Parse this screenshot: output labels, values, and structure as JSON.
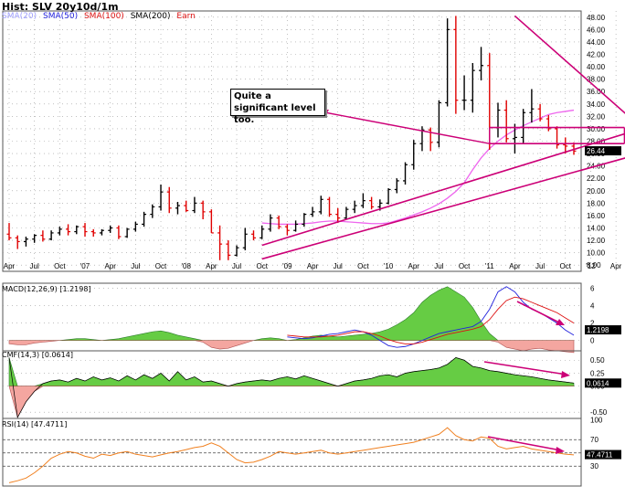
{
  "header": {
    "title": "Hist: SLV 20y10d/1m",
    "legend": [
      {
        "label": "SMA(20)",
        "color": "#9d9dff"
      },
      {
        "label": "SMA(50)",
        "color": "#2222dd"
      },
      {
        "label": "SMA(100)",
        "color": "#dd1111"
      },
      {
        "label": "SMA(200)",
        "color": "#000000"
      },
      {
        "label": "Earn",
        "color": "#dd1111"
      }
    ]
  },
  "annotation": {
    "text": "Quite a significant level too."
  },
  "colors": {
    "up": "#000000",
    "down": "#e00000",
    "trend": "#cc0077",
    "sma": "#ee66ee",
    "macd_pos": "#66cc44",
    "macd_neg": "#f4a6a0",
    "grid": "#9a9a9a"
  },
  "chart_data": [
    {
      "type": "ohlc",
      "title": "SLV price (monthly)",
      "x_tick_labels": [
        "Apr",
        "Jul",
        "Oct",
        "'07",
        "Apr",
        "Jul",
        "Oct",
        "'08",
        "Apr",
        "Jul",
        "Oct",
        "'09",
        "Apr",
        "Jul",
        "Oct",
        "'10",
        "Apr",
        "Jul",
        "Oct",
        "'11",
        "Apr",
        "Jul",
        "Oct",
        "'12",
        "Apr",
        "Jul"
      ],
      "y_ticks": [
        8,
        10,
        12,
        14,
        16,
        18,
        20,
        22,
        24,
        26,
        28,
        30,
        32,
        34,
        36,
        38,
        40,
        42,
        44,
        46,
        48
      ],
      "ylim": [
        7,
        49
      ],
      "last_value": "26.44",
      "bars": [
        [
          13.0,
          14.8,
          12.0,
          12.4
        ],
        [
          12.4,
          12.8,
          10.6,
          11.8
        ],
        [
          11.8,
          12.6,
          11.0,
          12.2
        ],
        [
          12.2,
          13.0,
          11.6,
          12.8
        ],
        [
          12.8,
          13.6,
          11.8,
          12.2
        ],
        [
          12.2,
          13.6,
          12.0,
          13.2
        ],
        [
          13.2,
          14.2,
          12.8,
          13.8
        ],
        [
          13.8,
          14.6,
          12.8,
          13.4
        ],
        [
          13.4,
          14.4,
          13.0,
          14.2
        ],
        [
          14.2,
          14.8,
          12.6,
          13.4
        ],
        [
          13.4,
          13.8,
          12.6,
          13.2
        ],
        [
          13.2,
          13.8,
          12.8,
          13.6
        ],
        [
          13.6,
          14.4,
          13.2,
          14.0
        ],
        [
          14.0,
          14.4,
          12.2,
          12.6
        ],
        [
          12.6,
          14.0,
          12.4,
          13.8
        ],
        [
          13.8,
          15.0,
          13.4,
          14.6
        ],
        [
          14.6,
          16.6,
          14.2,
          16.2
        ],
        [
          16.2,
          17.8,
          15.6,
          17.4
        ],
        [
          17.4,
          21.0,
          16.8,
          19.8
        ],
        [
          19.8,
          20.6,
          16.4,
          17.2
        ],
        [
          17.2,
          18.2,
          16.2,
          17.6
        ],
        [
          17.6,
          18.4,
          16.6,
          16.8
        ],
        [
          16.8,
          19.0,
          16.4,
          18.0
        ],
        [
          18.0,
          18.4,
          15.4,
          16.6
        ],
        [
          16.6,
          17.0,
          13.2,
          13.2
        ],
        [
          13.2,
          14.4,
          8.8,
          11.4
        ],
        [
          11.4,
          12.0,
          8.8,
          9.6
        ],
        [
          9.6,
          11.2,
          9.4,
          10.8
        ],
        [
          10.8,
          14.0,
          10.4,
          13.0
        ],
        [
          13.0,
          13.6,
          12.0,
          12.4
        ],
        [
          12.4,
          14.4,
          12.2,
          13.8
        ],
        [
          13.8,
          16.2,
          13.4,
          15.6
        ],
        [
          15.6,
          16.0,
          13.8,
          14.2
        ],
        [
          14.2,
          14.6,
          12.8,
          13.6
        ],
        [
          13.6,
          15.2,
          13.4,
          14.6
        ],
        [
          14.6,
          16.4,
          14.2,
          16.2
        ],
        [
          16.2,
          17.4,
          15.8,
          16.6
        ],
        [
          16.6,
          19.2,
          16.2,
          18.6
        ],
        [
          18.6,
          19.0,
          15.8,
          16.2
        ],
        [
          16.2,
          17.2,
          14.8,
          15.6
        ],
        [
          15.6,
          17.4,
          15.4,
          17.0
        ],
        [
          17.0,
          18.4,
          16.4,
          17.6
        ],
        [
          17.6,
          19.6,
          17.2,
          18.4
        ],
        [
          18.4,
          19.0,
          17.0,
          17.4
        ],
        [
          17.4,
          18.6,
          16.8,
          18.0
        ],
        [
          18.0,
          20.4,
          17.8,
          20.2
        ],
        [
          20.2,
          22.0,
          19.6,
          21.6
        ],
        [
          21.6,
          24.6,
          21.0,
          24.2
        ],
        [
          24.2,
          28.2,
          23.4,
          27.6
        ],
        [
          27.6,
          30.4,
          26.4,
          29.8
        ],
        [
          29.8,
          30.2,
          26.4,
          27.8
        ],
        [
          27.8,
          34.6,
          27.0,
          34.2
        ],
        [
          34.2,
          47.8,
          33.6,
          46.0
        ],
        [
          46.0,
          48.2,
          32.4,
          34.6
        ],
        [
          34.6,
          38.6,
          33.0,
          34.6
        ],
        [
          34.6,
          40.6,
          32.6,
          39.4
        ],
        [
          39.4,
          43.2,
          37.8,
          40.2
        ],
        [
          40.2,
          42.2,
          26.6,
          30.2
        ],
        [
          30.2,
          34.2,
          28.6,
          33.0
        ],
        [
          33.0,
          34.6,
          27.8,
          28.4
        ],
        [
          28.4,
          30.8,
          26.0,
          28.6
        ],
        [
          28.6,
          33.2,
          27.6,
          32.6
        ],
        [
          32.6,
          36.4,
          31.0,
          33.2
        ],
        [
          33.2,
          34.0,
          31.2,
          31.6
        ],
        [
          31.6,
          32.2,
          29.6,
          30.0
        ],
        [
          30.0,
          30.4,
          26.8,
          27.4
        ],
        [
          27.4,
          28.6,
          26.0,
          27.2
        ],
        [
          27.2,
          27.8,
          25.8,
          26.4
        ]
      ],
      "series": [
        {
          "name": "SMA(20)",
          "values": [
            14.8,
            14.7,
            14.6,
            14.6,
            14.6,
            14.7,
            14.8,
            15.0,
            15.1,
            15.1,
            15.0,
            14.9,
            14.8,
            14.7,
            14.7,
            14.8,
            15.2,
            15.6,
            16.1,
            16.6,
            17.2,
            17.9,
            18.8,
            19.9,
            21.3,
            23.4,
            25.3,
            26.8,
            28.0,
            29.0,
            29.8,
            30.5,
            31.1,
            31.7,
            32.3,
            32.6,
            32.8,
            33.0
          ]
        }
      ],
      "trendlines": [
        {
          "name": "channel-upper",
          "from": [
            "Oct 2008",
            11.2
          ],
          "to": [
            "Jul 2012",
            30.0
          ]
        },
        {
          "name": "channel-lower",
          "from": [
            "Oct 2008",
            9.0
          ],
          "to": [
            "Jul 2012",
            26.0
          ]
        },
        {
          "name": "triangle-top",
          "from": [
            "Apr 2011",
            48.2
          ],
          "to": [
            "Jul 2012",
            30.2
          ]
        },
        {
          "name": "resistance-top",
          "from": [
            "Jan 2011",
            30.2
          ],
          "to": [
            "May 2012",
            30.2
          ]
        },
        {
          "name": "resistance-bottom",
          "from": [
            "Jan 2011",
            27.6
          ],
          "to": [
            "May 2012",
            27.6
          ]
        }
      ]
    },
    {
      "type": "histogram",
      "title": "MACD(12,26,9)",
      "value_label": "1.2198",
      "y_ticks": [
        0,
        2,
        4,
        6
      ],
      "ylim": [
        -1.2,
        6.6
      ],
      "histogram": [
        -0.4,
        -0.5,
        -0.5,
        -0.3,
        -0.2,
        -0.1,
        0.0,
        0.1,
        0.2,
        0.2,
        0.1,
        0.0,
        0.1,
        0.2,
        0.4,
        0.6,
        0.8,
        1.0,
        1.1,
        0.9,
        0.6,
        0.4,
        0.2,
        -0.2,
        -0.8,
        -1.0,
        -0.9,
        -0.6,
        -0.3,
        0.0,
        0.2,
        0.3,
        0.2,
        0.0,
        0.1,
        0.3,
        0.5,
        0.6,
        0.5,
        0.4,
        0.5,
        0.6,
        0.7,
        0.8,
        1.0,
        1.3,
        1.8,
        2.4,
        3.2,
        4.4,
        5.2,
        5.8,
        6.2,
        5.6,
        5.0,
        3.8,
        2.2,
        0.8,
        -0.2,
        -0.8,
        -1.0,
        -1.2,
        -1.0,
        -0.9,
        -1.1,
        -1.2,
        -1.3,
        -1.4
      ],
      "series": [
        {
          "name": "MACD",
          "color": "#2222dd",
          "values": [
            0.4,
            0.3,
            0.2,
            0.3,
            0.5,
            0.7,
            0.8,
            1.0,
            1.2,
            1.0,
            0.6,
            0.0,
            -0.6,
            -0.8,
            -0.7,
            -0.4,
            0.0,
            0.4,
            0.8,
            1.0,
            1.2,
            1.4,
            1.6,
            2.2,
            3.6,
            5.6,
            6.2,
            5.6,
            4.4,
            3.6,
            3.2,
            2.6,
            2.0,
            1.2,
            0.6
          ]
        },
        {
          "name": "Signal",
          "color": "#dd1111",
          "values": [
            0.6,
            0.5,
            0.4,
            0.4,
            0.4,
            0.5,
            0.6,
            0.8,
            1.0,
            1.0,
            0.8,
            0.5,
            0.1,
            -0.2,
            -0.4,
            -0.4,
            -0.2,
            0.1,
            0.4,
            0.7,
            0.9,
            1.1,
            1.3,
            1.6,
            2.4,
            3.6,
            4.6,
            5.0,
            4.8,
            4.4,
            4.0,
            3.6,
            3.2,
            2.6,
            2.0
          ]
        }
      ]
    },
    {
      "type": "area",
      "title": "CMF(14,3)",
      "value_label": "0.0614",
      "y_ticks": [
        -0.5,
        0,
        0.25,
        0.5
      ],
      "ylim": [
        -0.62,
        0.68
      ],
      "values": [
        0.55,
        -0.6,
        -0.3,
        -0.1,
        0.05,
        0.1,
        0.12,
        0.08,
        0.15,
        0.1,
        0.18,
        0.12,
        0.16,
        0.1,
        0.2,
        0.12,
        0.22,
        0.15,
        0.25,
        0.1,
        0.28,
        0.12,
        0.18,
        0.08,
        0.1,
        0.05,
        0.0,
        0.05,
        0.08,
        0.1,
        0.12,
        0.1,
        0.15,
        0.18,
        0.14,
        0.2,
        0.15,
        0.1,
        0.05,
        0.0,
        0.05,
        0.1,
        0.12,
        0.15,
        0.2,
        0.22,
        0.18,
        0.25,
        0.28,
        0.3,
        0.32,
        0.35,
        0.42,
        0.55,
        0.5,
        0.38,
        0.35,
        0.3,
        0.28,
        0.25,
        0.22,
        0.2,
        0.18,
        0.15,
        0.12,
        0.1,
        0.08,
        0.06
      ]
    },
    {
      "type": "line",
      "title": "RSI(14)",
      "value_label": "47.4711",
      "y_ticks": [
        30,
        50,
        70,
        100
      ],
      "ylim": [
        0,
        102
      ],
      "hlines": [
        30,
        50,
        70
      ],
      "values": [
        5,
        8,
        12,
        20,
        30,
        42,
        48,
        52,
        50,
        45,
        42,
        48,
        46,
        50,
        52,
        48,
        46,
        44,
        47,
        50,
        52,
        55,
        58,
        60,
        65,
        60,
        50,
        40,
        35,
        36,
        40,
        45,
        52,
        50,
        48,
        50,
        52,
        54,
        50,
        48,
        50,
        52,
        54,
        56,
        58,
        60,
        62,
        64,
        66,
        70,
        74,
        78,
        88,
        76,
        70,
        68,
        74,
        72,
        60,
        56,
        58,
        60,
        56,
        54,
        52,
        50,
        48,
        47
      ]
    }
  ]
}
